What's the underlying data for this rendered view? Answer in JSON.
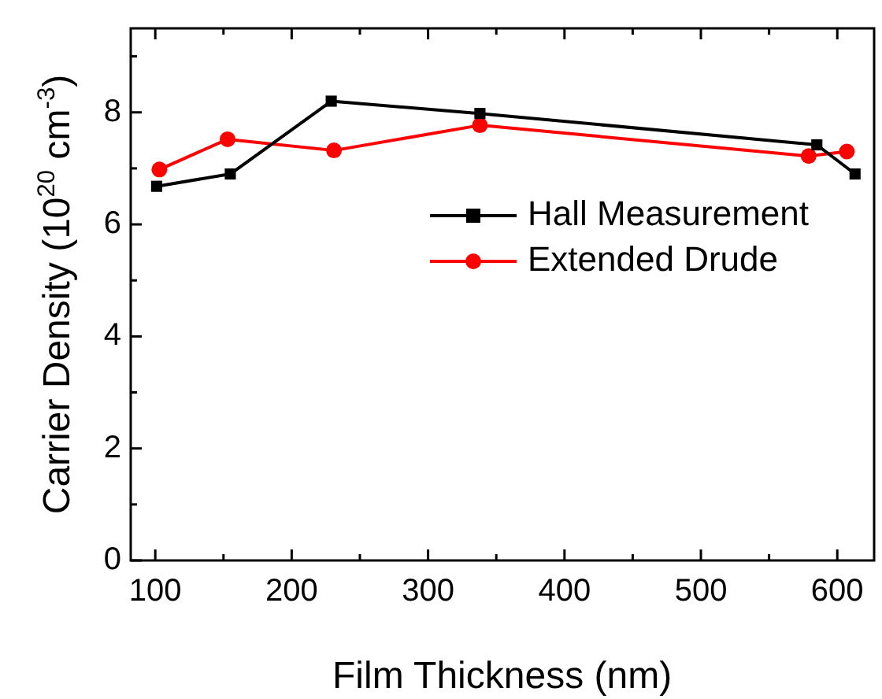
{
  "chart_data": {
    "type": "line",
    "xlabel": "Film Thickness (nm)",
    "ylabel": "Carrier Density (10$^{20}$ cm$^{-3}$)",
    "xlim": [
      82,
      627
    ],
    "xticks": [
      100,
      200,
      300,
      400,
      500,
      600
    ],
    "ylim": [
      0,
      9.5
    ],
    "yticks": [
      0,
      2,
      4,
      6,
      8
    ],
    "grid": false,
    "legend": "right",
    "line_style": "solid",
    "series": [
      {
        "name": "Hall Measurement",
        "color": "#000000",
        "marker": "square",
        "x": [
          101,
          155,
          229,
          338,
          585,
          613
        ],
        "values": [
          6.68,
          6.9,
          8.2,
          7.98,
          7.42,
          6.9
        ]
      },
      {
        "name": "Extended Drude",
        "color": "#ff0000",
        "marker": "circle",
        "x": [
          103,
          153,
          231,
          338,
          579,
          607
        ],
        "values": [
          6.98,
          7.52,
          7.32,
          7.77,
          7.22,
          7.3
        ]
      }
    ]
  }
}
